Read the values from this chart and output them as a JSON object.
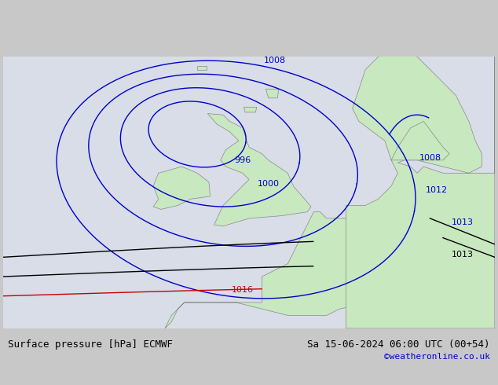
{
  "title_left": "Surface pressure [hPa] ECMWF",
  "title_right": "Sa 15-06-2024 06:00 UTC (00+54)",
  "watermark": "©weatheronline.co.uk",
  "bg_color": "#d0d8e8",
  "land_color": "#c8e8c0",
  "border_color": "#888888",
  "isobar_color_blue": "#0000cc",
  "isobar_color_black": "#000000",
  "isobar_color_red": "#cc0000",
  "label_fontsize": 9,
  "title_fontsize": 10,
  "watermark_color": "#0000cc"
}
